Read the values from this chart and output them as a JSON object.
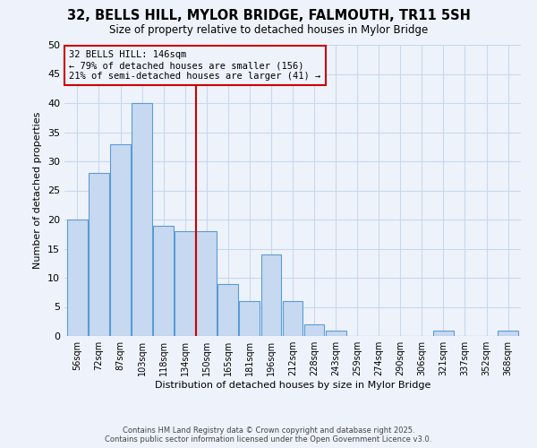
{
  "title": "32, BELLS HILL, MYLOR BRIDGE, FALMOUTH, TR11 5SH",
  "subtitle": "Size of property relative to detached houses in Mylor Bridge",
  "xlabel": "Distribution of detached houses by size in Mylor Bridge",
  "ylabel": "Number of detached properties",
  "bin_labels": [
    "56sqm",
    "72sqm",
    "87sqm",
    "103sqm",
    "118sqm",
    "134sqm",
    "150sqm",
    "165sqm",
    "181sqm",
    "196sqm",
    "212sqm",
    "228sqm",
    "243sqm",
    "259sqm",
    "274sqm",
    "290sqm",
    "306sqm",
    "321sqm",
    "337sqm",
    "352sqm",
    "368sqm"
  ],
  "bar_values": [
    20,
    28,
    33,
    40,
    19,
    18,
    18,
    9,
    6,
    14,
    6,
    2,
    1,
    0,
    0,
    0,
    0,
    1,
    0,
    0,
    1
  ],
  "bar_color": "#c6d9f0",
  "bar_edge_color": "#5b9bd5",
  "vline_x_index": 6,
  "vline_color": "#cc0000",
  "annotation_text": "32 BELLS HILL: 146sqm\n← 79% of detached houses are smaller (156)\n21% of semi-detached houses are larger (41) →",
  "annotation_box_color": "#cc0000",
  "ylim": [
    0,
    50
  ],
  "yticks": [
    0,
    5,
    10,
    15,
    20,
    25,
    30,
    35,
    40,
    45,
    50
  ],
  "grid_color": "#c8d8ee",
  "background_color": "#eef3fb",
  "footer_line1": "Contains HM Land Registry data © Crown copyright and database right 2025.",
  "footer_line2": "Contains public sector information licensed under the Open Government Licence v3.0."
}
